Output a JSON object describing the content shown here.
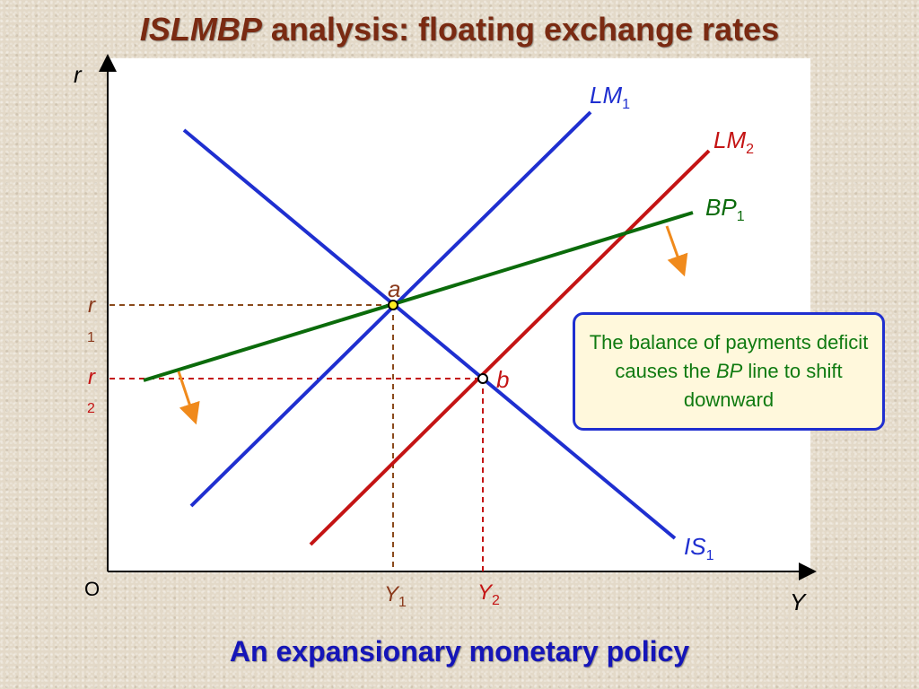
{
  "title": {
    "emphasis": "ISLMBP",
    "rest": " analysis: floating exchange rates"
  },
  "subtitle": "An expansionary monetary policy",
  "axes": {
    "y_label": "r",
    "x_label": "Y",
    "origin_label": "O"
  },
  "curves": {
    "lm1": {
      "name": "LM",
      "sub": "1",
      "color": "#1f2fd0"
    },
    "lm2": {
      "name": "LM",
      "sub": "2",
      "color": "#c41414"
    },
    "bp1": {
      "name": "BP",
      "sub": "1",
      "color": "#0b6b0b"
    },
    "is1": {
      "name": "IS",
      "sub": "1",
      "color": "#1f2fd0"
    }
  },
  "points": {
    "a": "a",
    "b": "b"
  },
  "levels": {
    "r1": {
      "name": "r",
      "sub": "1"
    },
    "r2": {
      "name": "r",
      "sub": "2"
    },
    "y1": {
      "name": "Y",
      "sub": "1"
    },
    "y2": {
      "name": "Y",
      "sub": "2"
    }
  },
  "callout": {
    "before": "The balance of payments deficit causes the ",
    "emphasis": "BP",
    "after": " line to shift downward"
  },
  "colors": {
    "brown_guides": "#8a4a1c",
    "red_guides": "#c41414",
    "arrow": "#f08a1c"
  }
}
